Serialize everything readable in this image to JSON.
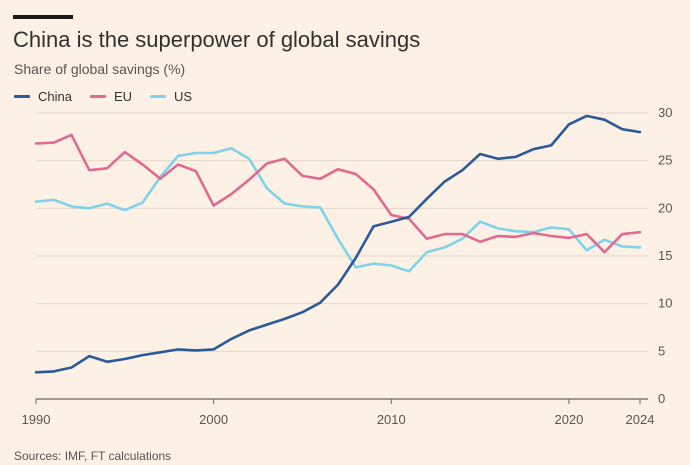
{
  "header": {
    "title": "China is the superpower of global savings",
    "subtitle": "Share of global savings (%)"
  },
  "footer": {
    "source": "Sources: IMF, FT calculations"
  },
  "colors": {
    "China": "#2b5a9a",
    "EU": "#e06a92",
    "US": "#7fd3e8",
    "background": "#fdf1e6"
  },
  "chart_data": {
    "type": "line",
    "title": "China is the superpower of global savings",
    "subtitle": "Share of global savings (%)",
    "xlabel": "",
    "ylabel": "",
    "xlim": [
      1990,
      2024
    ],
    "ylim": [
      0,
      30
    ],
    "yticks": [
      0,
      5,
      10,
      15,
      20,
      25,
      30
    ],
    "xtick_labels": [
      "1990",
      "2000",
      "2010",
      "2020",
      "2024"
    ],
    "xticks": [
      1990,
      2000,
      2010,
      2020,
      2024
    ],
    "grid": "horizontal",
    "legend": "top-left",
    "x": [
      1990,
      1991,
      1992,
      1993,
      1994,
      1995,
      1996,
      1997,
      1998,
      1999,
      2000,
      2001,
      2002,
      2003,
      2004,
      2005,
      2006,
      2007,
      2008,
      2009,
      2010,
      2011,
      2012,
      2013,
      2014,
      2015,
      2016,
      2017,
      2018,
      2019,
      2020,
      2021,
      2022,
      2023,
      2024
    ],
    "series": [
      {
        "name": "China",
        "values": [
          2.8,
          2.9,
          3.3,
          4.5,
          3.9,
          4.2,
          4.6,
          4.9,
          5.2,
          5.1,
          5.2,
          6.3,
          7.2,
          7.8,
          8.4,
          9.1,
          10.1,
          12.0,
          14.8,
          18.1,
          18.6,
          19.1,
          21.0,
          22.8,
          24.0,
          25.7,
          25.2,
          25.4,
          26.2,
          26.6,
          28.8,
          29.7,
          29.3,
          28.3,
          28.0
        ]
      },
      {
        "name": "EU",
        "values": [
          26.8,
          26.9,
          27.7,
          24.0,
          24.2,
          25.9,
          24.6,
          23.1,
          24.6,
          23.9,
          20.3,
          21.5,
          23.0,
          24.7,
          25.2,
          23.4,
          23.1,
          24.1,
          23.6,
          22.0,
          19.3,
          18.9,
          16.8,
          17.3,
          17.3,
          16.5,
          17.1,
          17.0,
          17.4,
          17.1,
          16.9,
          17.3,
          15.4,
          17.3,
          17.5
        ]
      },
      {
        "name": "US",
        "values": [
          20.7,
          20.9,
          20.2,
          20.0,
          20.5,
          19.8,
          20.6,
          23.3,
          25.5,
          25.8,
          25.8,
          26.3,
          25.2,
          22.1,
          20.5,
          20.2,
          20.1,
          16.8,
          13.8,
          14.2,
          14.0,
          13.4,
          15.4,
          15.9,
          16.8,
          18.6,
          17.9,
          17.6,
          17.5,
          18.0,
          17.8,
          15.6,
          16.7,
          16.0,
          15.9
        ]
      }
    ]
  }
}
